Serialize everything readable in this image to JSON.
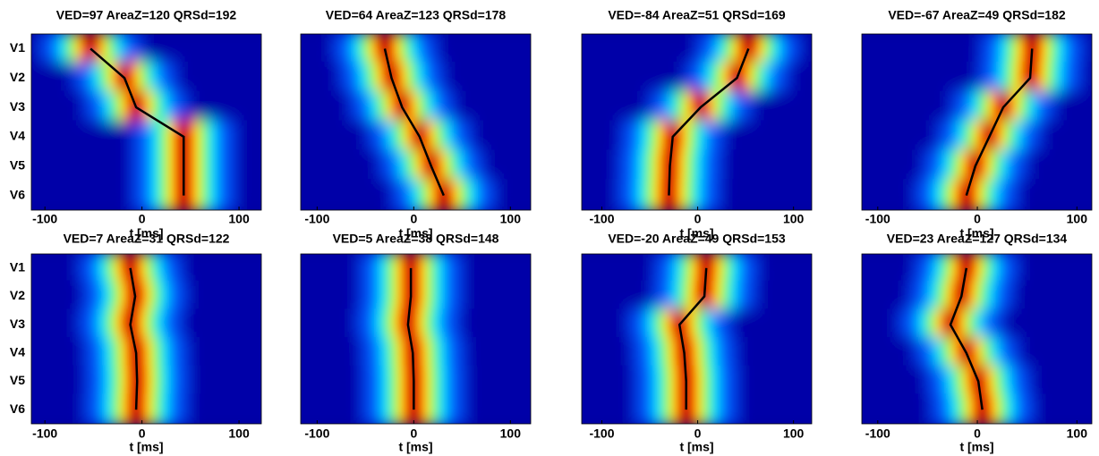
{
  "chart_data": [
    {
      "type": "heatline",
      "title": "VED=97  AreaZ=120 QRSd=192",
      "categories": [
        "V1",
        "V2",
        "V3",
        "V4",
        "V5",
        "V6"
      ],
      "x_label": "t  [ms]",
      "xlim": [
        -114,
        123
      ],
      "xticks": [
        -100,
        0,
        100
      ],
      "series": [
        {
          "color": "#000000",
          "values": [
            -53,
            -18,
            -6,
            43,
            43,
            43
          ]
        }
      ]
    },
    {
      "type": "heatline",
      "title": "VED=64  AreaZ=123 QRSd=178",
      "categories": [
        null,
        null,
        null,
        null,
        null,
        null
      ],
      "x_label": "t  [ms]",
      "xlim": [
        -117,
        121
      ],
      "xticks": [
        -100,
        0,
        100
      ],
      "series": [
        {
          "color": "#000000",
          "values": [
            -30,
            -23,
            -12,
            6,
            18,
            31
          ]
        }
      ]
    },
    {
      "type": "heatline",
      "title": "VED=-84  AreaZ=51 QRSd=169",
      "categories": [
        null,
        null,
        null,
        null,
        null,
        null
      ],
      "x_label": "t  [ms]",
      "xlim": [
        -121,
        119
      ],
      "xticks": [
        -100,
        0,
        100
      ],
      "series": [
        {
          "color": "#000000",
          "values": [
            53,
            41,
            3,
            -26,
            -29,
            -30
          ]
        }
      ]
    },
    {
      "type": "heatline",
      "title": "VED=-67  AreaZ=49 QRSd=182",
      "categories": [
        null,
        null,
        null,
        null,
        null,
        null
      ],
      "x_label": "t  [ms]",
      "xlim": [
        -116,
        115
      ],
      "xticks": [
        -100,
        0,
        100
      ],
      "series": [
        {
          "color": "#000000",
          "values": [
            55,
            53,
            26,
            12,
            -2,
            -11
          ]
        }
      ]
    },
    {
      "type": "heatline",
      "title": "VED=7  AreaZ=31 QRSd=122",
      "categories": [
        "V1",
        "V2",
        "V3",
        "V4",
        "V5",
        "V6"
      ],
      "x_label": "t  [ms]",
      "xlim": [
        -114,
        123
      ],
      "xticks": [
        -100,
        0,
        100
      ],
      "series": [
        {
          "color": "#000000",
          "values": [
            -12,
            -7,
            -12,
            -6,
            -5,
            -6
          ]
        }
      ]
    },
    {
      "type": "heatline",
      "title": "VED=5  AreaZ=38 QRSd=148",
      "categories": [
        null,
        null,
        null,
        null,
        null,
        null
      ],
      "x_label": "t  [ms]",
      "xlim": [
        -117,
        121
      ],
      "xticks": [
        -100,
        0,
        100
      ],
      "series": [
        {
          "color": "#000000",
          "values": [
            -3,
            -3,
            -6,
            -1,
            0,
            0
          ]
        }
      ]
    },
    {
      "type": "heatline",
      "title": "VED=-20  AreaZ=49 QRSd=153",
      "categories": [
        null,
        null,
        null,
        null,
        null,
        null
      ],
      "x_label": "t  [ms]",
      "xlim": [
        -121,
        119
      ],
      "xticks": [
        -100,
        0,
        100
      ],
      "series": [
        {
          "color": "#000000",
          "values": [
            9,
            7,
            -19,
            -14,
            -12,
            -12
          ]
        }
      ]
    },
    {
      "type": "heatline",
      "title": "VED=23  AreaZ=127 QRSd=134",
      "categories": [
        null,
        null,
        null,
        null,
        null,
        null
      ],
      "x_label": "t  [ms]",
      "xlim": [
        -116,
        115
      ],
      "xticks": [
        -100,
        0,
        100
      ],
      "series": [
        {
          "color": "#000000",
          "values": [
            -11,
            -16,
            -27,
            -11,
            1,
            5
          ]
        }
      ]
    }
  ]
}
